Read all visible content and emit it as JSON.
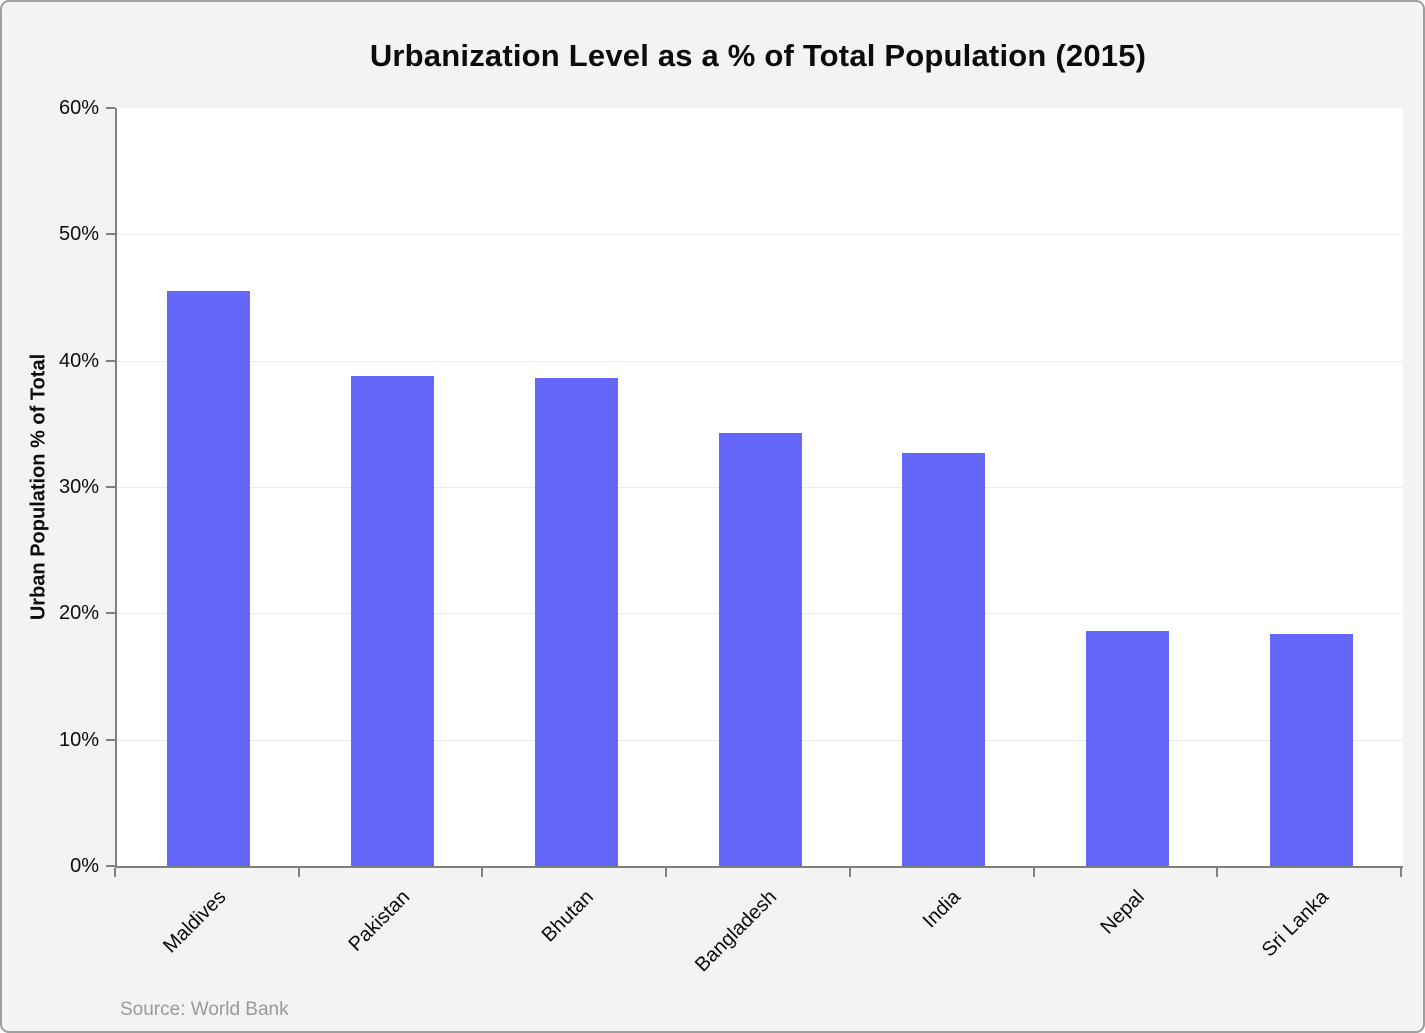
{
  "chart_data": {
    "type": "bar",
    "title": "Urbanization Level as a % of Total Population (2015)",
    "categories": [
      "Maldives",
      "Pakistan",
      "Bhutan",
      "Bangladesh",
      "India",
      "Nepal",
      "Sri Lanka"
    ],
    "values": [
      45.5,
      38.8,
      38.6,
      34.3,
      32.7,
      18.6,
      18.4
    ],
    "xlabel": "",
    "ylabel": "Urban Population % of Total",
    "ylim": [
      0,
      60
    ],
    "ytick_step": 10,
    "ytick_suffix": "%",
    "grid": true,
    "legend": "none",
    "bar_color": "#6467fa",
    "source": "Source: World Bank"
  }
}
